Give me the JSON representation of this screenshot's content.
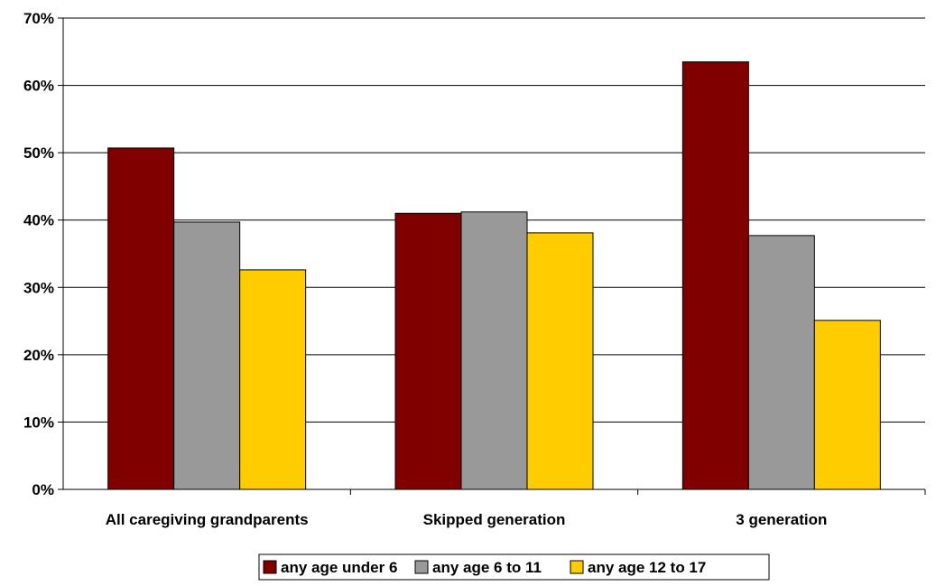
{
  "chart_data": {
    "type": "bar",
    "categories": [
      "All caregiving grandparents",
      "Skipped generation",
      "3 generation"
    ],
    "series": [
      {
        "name": "any age under 6",
        "values": [
          50.7,
          41.0,
          63.5
        ],
        "color": "#800000"
      },
      {
        "name": "any age 6 to 11",
        "values": [
          39.7,
          41.2,
          37.7
        ],
        "color": "#999999"
      },
      {
        "name": "any age 12 to 17",
        "values": [
          32.6,
          38.1,
          25.1
        ],
        "color": "#FFCC00"
      }
    ],
    "y_ticks": [
      "0%",
      "10%",
      "20%",
      "30%",
      "40%",
      "50%",
      "60%",
      "70%"
    ],
    "ylim": [
      0,
      70
    ],
    "grid": true,
    "legend": "bottom"
  }
}
